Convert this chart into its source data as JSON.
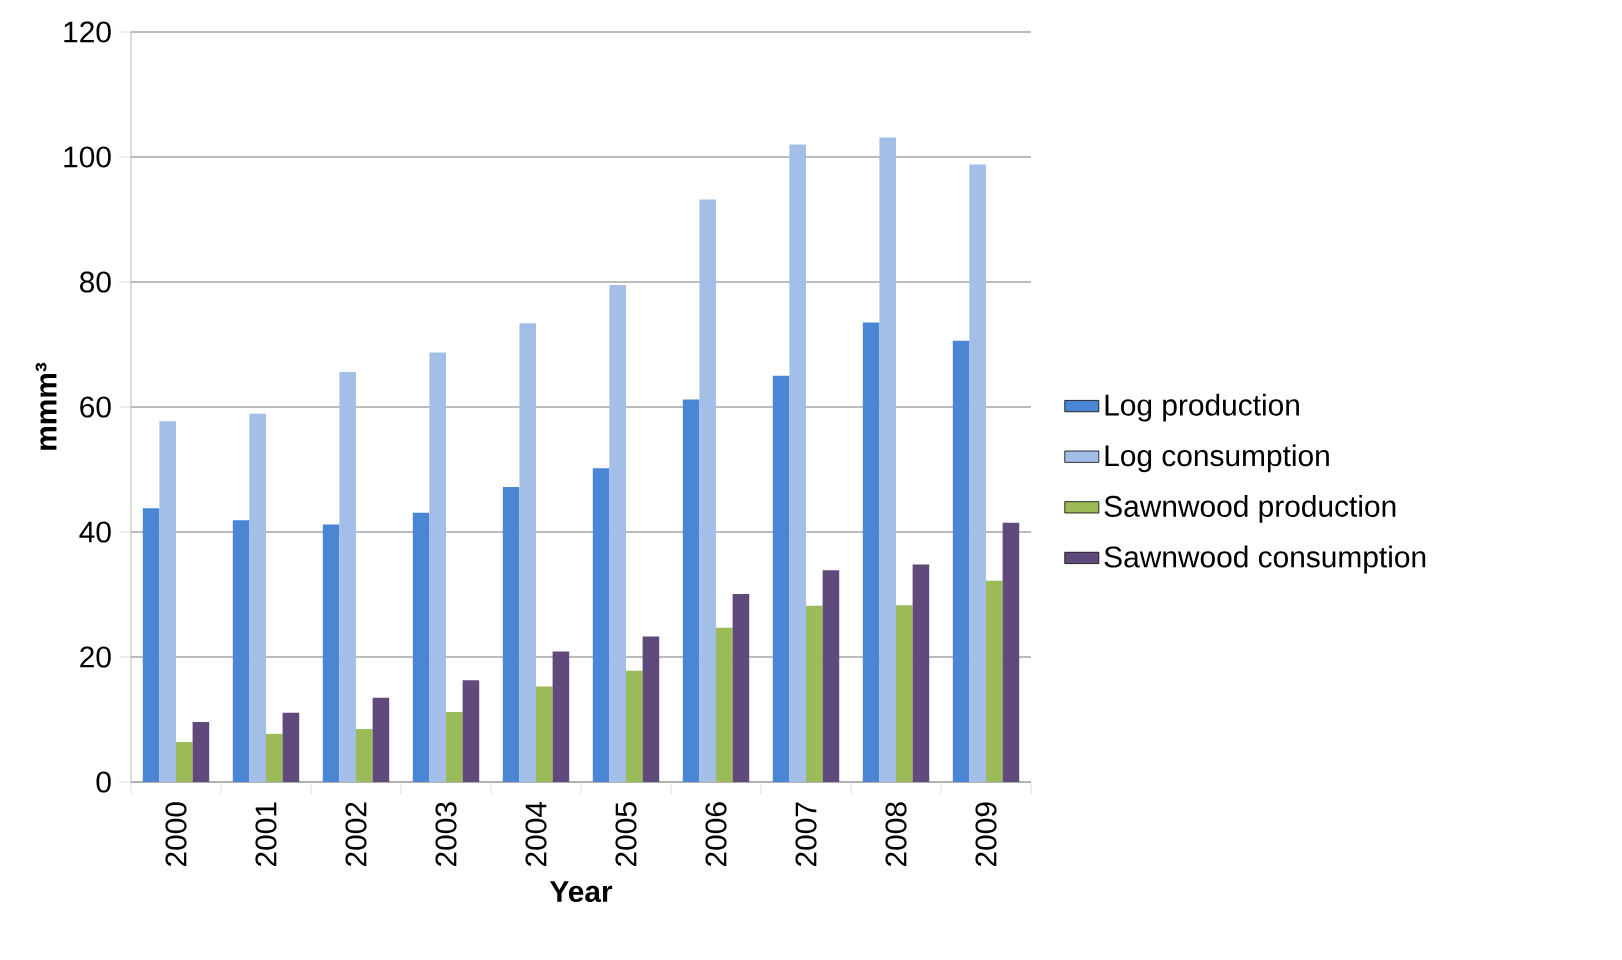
{
  "chart_data": {
    "type": "bar",
    "xlabel": "Year",
    "ylabel": "mmm³",
    "categories": [
      "2000",
      "2001",
      "2002",
      "2003",
      "2004",
      "2005",
      "2006",
      "2007",
      "2008",
      "2009"
    ],
    "series": [
      {
        "name": "Log production",
        "color": "#4a86d4",
        "values": [
          43.8,
          41.9,
          41.2,
          43.1,
          47.2,
          50.2,
          61.2,
          65.0,
          73.5,
          70.6
        ]
      },
      {
        "name": "Log consumption",
        "color": "#a3bfe8",
        "values": [
          57.7,
          58.9,
          65.6,
          68.7,
          73.4,
          79.5,
          93.2,
          102.0,
          103.1,
          98.8
        ]
      },
      {
        "name": "Sawnwood production",
        "color": "#9bbb59",
        "values": [
          6.4,
          7.7,
          8.5,
          11.2,
          15.3,
          17.8,
          24.7,
          28.2,
          28.3,
          32.2
        ]
      },
      {
        "name": "Sawnwood consumption",
        "color": "#604a7b",
        "values": [
          9.6,
          11.1,
          13.5,
          16.3,
          20.9,
          23.3,
          30.1,
          33.9,
          34.8,
          41.5
        ]
      }
    ],
    "ylim": [
      0,
      120
    ],
    "yticks": [
      0,
      20,
      40,
      60,
      80,
      100,
      120
    ],
    "grid": "y",
    "legend": "right"
  }
}
